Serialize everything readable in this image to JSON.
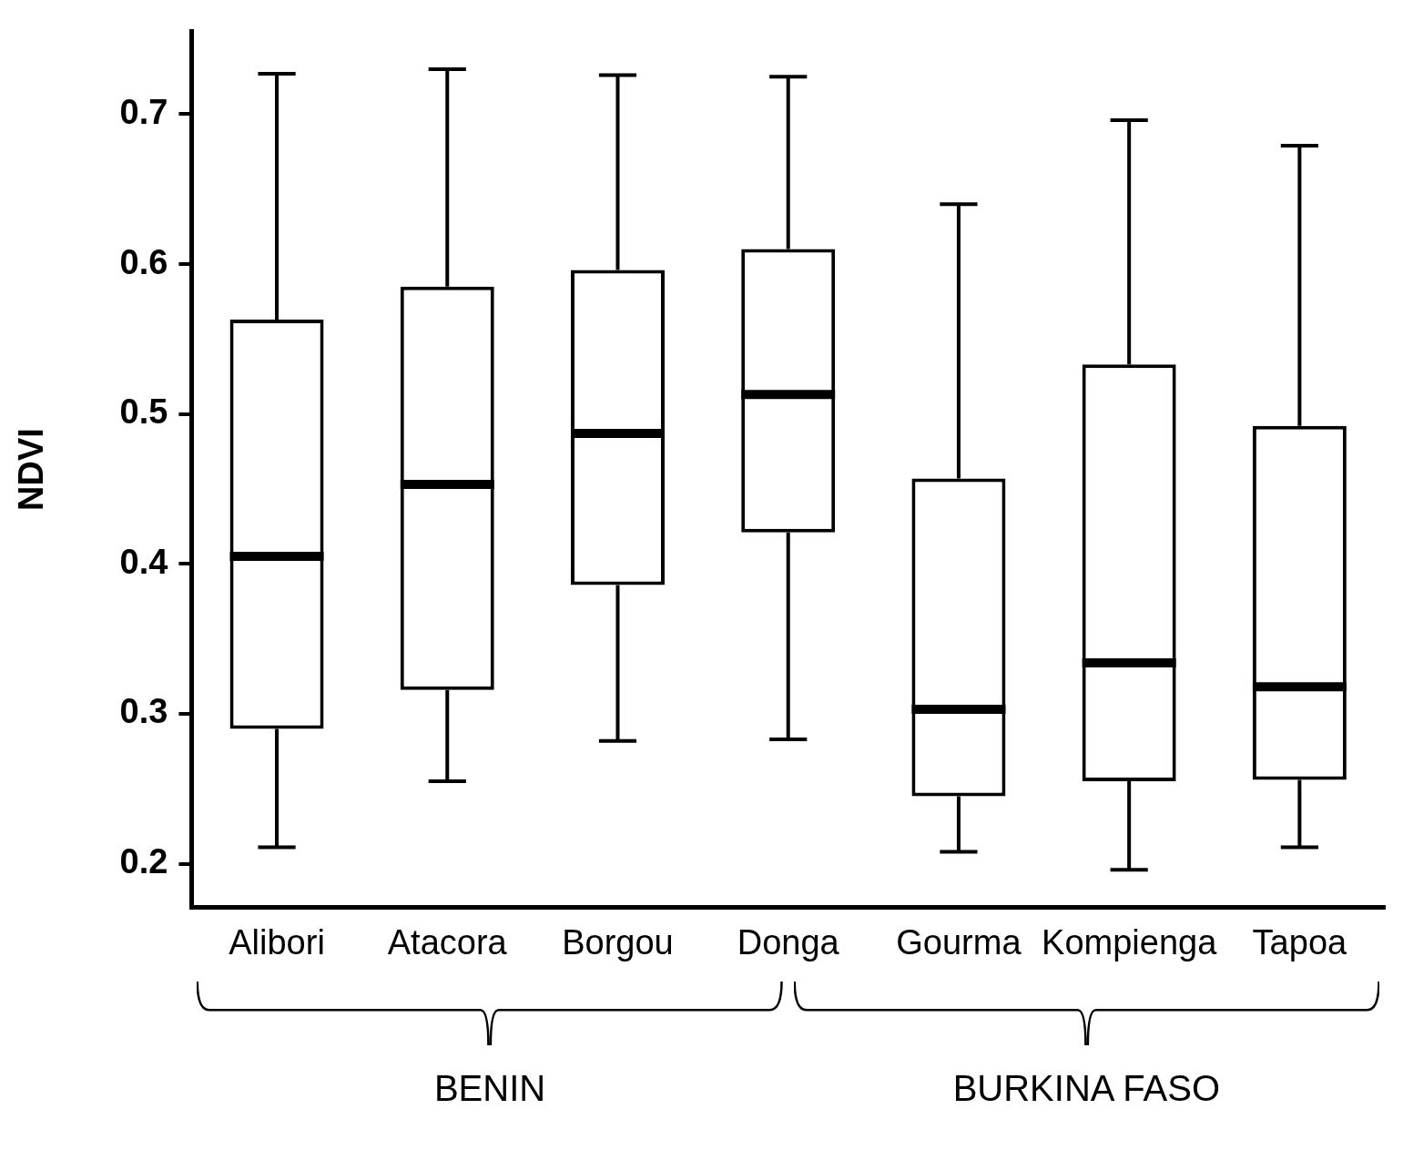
{
  "chart_data": {
    "type": "box",
    "ylabel": "NDVI",
    "categories": [
      "Alibori",
      "Atacora",
      "Borgou",
      "Donga",
      "Gourma",
      "Kompienga",
      "Tapoa"
    ],
    "boxes": [
      {
        "low": 0.211,
        "q1": 0.29,
        "median": 0.405,
        "q3": 0.563,
        "high": 0.727
      },
      {
        "low": 0.255,
        "q1": 0.316,
        "median": 0.453,
        "q3": 0.585,
        "high": 0.73
      },
      {
        "low": 0.282,
        "q1": 0.386,
        "median": 0.487,
        "q3": 0.596,
        "high": 0.726
      },
      {
        "low": 0.283,
        "q1": 0.421,
        "median": 0.513,
        "q3": 0.61,
        "high": 0.725
      },
      {
        "low": 0.208,
        "q1": 0.245,
        "median": 0.303,
        "q3": 0.457,
        "high": 0.64
      },
      {
        "low": 0.196,
        "q1": 0.255,
        "median": 0.334,
        "q3": 0.533,
        "high": 0.696
      },
      {
        "low": 0.211,
        "q1": 0.256,
        "median": 0.318,
        "q3": 0.492,
        "high": 0.679
      }
    ],
    "color": "#000000",
    "ylim": [
      0.171,
      0.755
    ],
    "yticks": [
      0.2,
      0.3,
      0.4,
      0.5,
      0.6,
      0.7
    ],
    "grid": false,
    "legend": false,
    "annotations": [
      "BENIN",
      "BURKINA FASO"
    ]
  }
}
